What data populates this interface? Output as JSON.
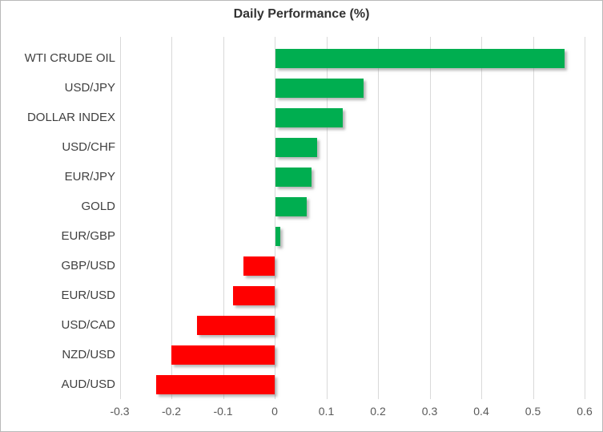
{
  "chart_data": {
    "type": "bar",
    "orientation": "horizontal",
    "title": "Daily Performance (%)",
    "categories": [
      "WTI CRUDE OIL",
      "USD/JPY",
      "DOLLAR INDEX",
      "USD/CHF",
      "EUR/JPY",
      "GOLD",
      "EUR/GBP",
      "GBP/USD",
      "EUR/USD",
      "USD/CAD",
      "NZD/USD",
      "AUD/USD"
    ],
    "values": [
      0.56,
      0.17,
      0.13,
      0.08,
      0.07,
      0.06,
      0.01,
      -0.06,
      -0.08,
      -0.15,
      -0.2,
      -0.23
    ],
    "xlabel": "",
    "ylabel": "",
    "xlim": [
      -0.3,
      0.6
    ],
    "xticks": [
      -0.3,
      -0.2,
      -0.1,
      0,
      0.1,
      0.2,
      0.3,
      0.4,
      0.5,
      0.6
    ],
    "xtick_labels": [
      "-0.3",
      "-0.2",
      "-0.1",
      "0",
      "0.1",
      "0.2",
      "0.3",
      "0.4",
      "0.5",
      "0.6"
    ],
    "grid": "vertical",
    "legend": "none",
    "colors": {
      "positive": "#00AE50",
      "negative": "#FF0000",
      "gridline": "#d9d9d9",
      "category_text": "#404040",
      "tick_text": "#595959",
      "title_text": "#333333"
    }
  }
}
